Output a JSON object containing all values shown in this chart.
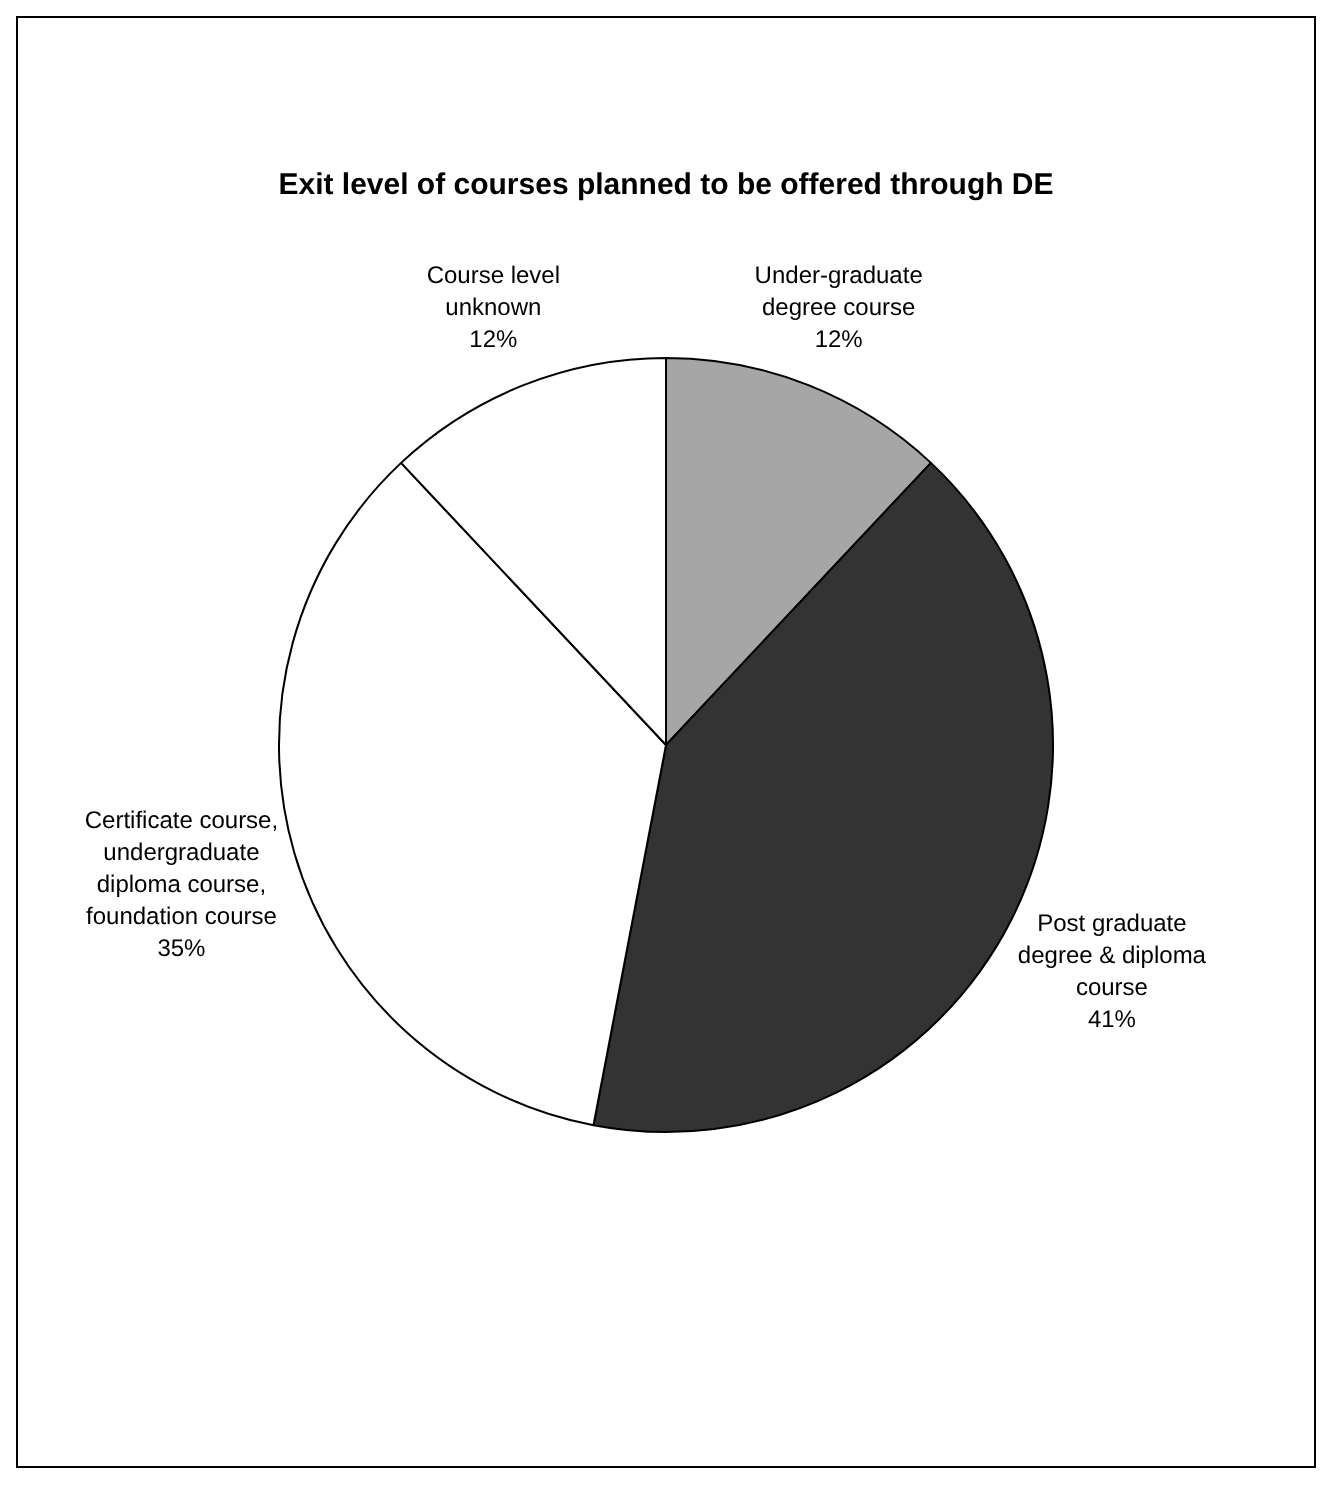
{
  "chart_data": {
    "type": "pie",
    "title": "Exit level of courses planned to be offered through DE",
    "categories": [
      "Under-graduate degree course",
      "Post graduate degree & diploma course",
      "Certificate course, undergraduate diploma course, foundation course",
      "Course level unknown"
    ],
    "values": [
      12,
      41,
      35,
      12
    ],
    "colors": [
      "#a6a6a6",
      "#333333",
      "#ffffff",
      "#ffffff"
    ],
    "value_labels": [
      "12%",
      "41%",
      "35%",
      "12%"
    ],
    "legend": false
  }
}
